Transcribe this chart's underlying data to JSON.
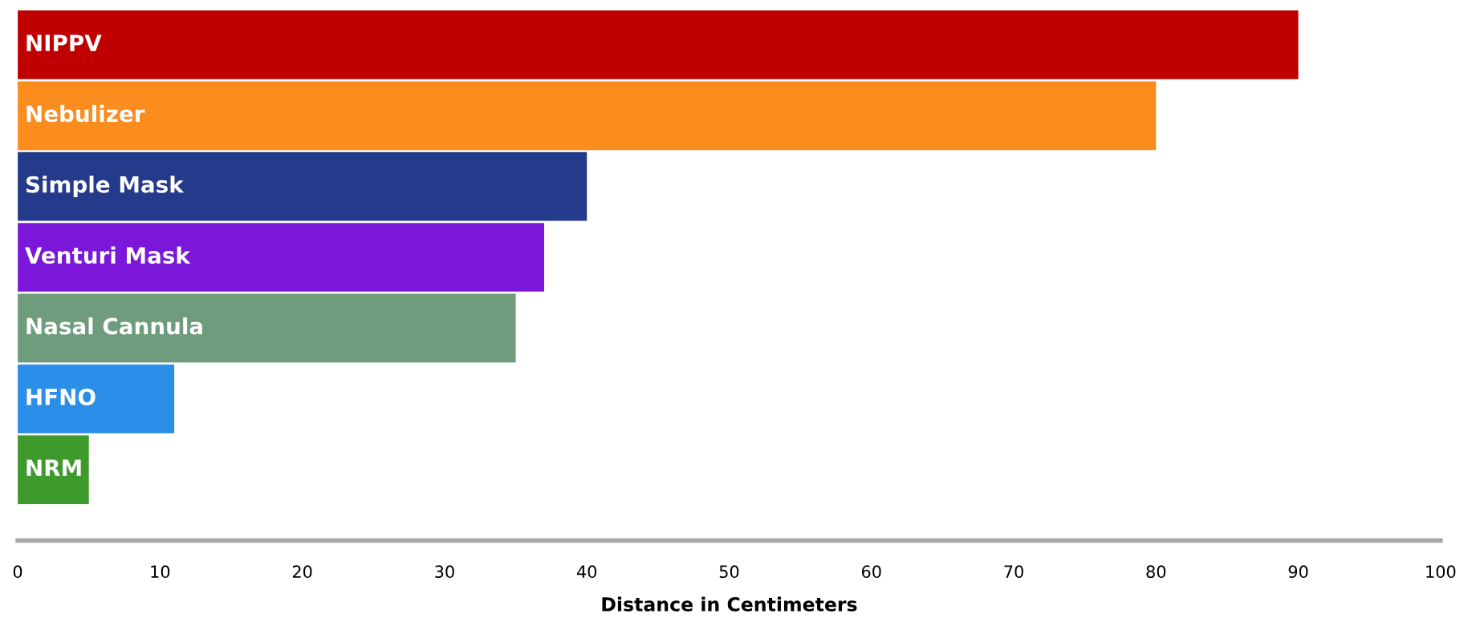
{
  "chart_data": {
    "type": "bar",
    "orientation": "horizontal",
    "xlabel": "Distance in Centimeters",
    "categories": [
      "NIPPV",
      "Nebulizer",
      "Simple Mask",
      "Venturi Mask",
      "Nasal Cannula",
      "HFNO",
      "NRM"
    ],
    "values": [
      90,
      80,
      40,
      37,
      35,
      11,
      5
    ],
    "colors": [
      "#c00000",
      "#fb8c1e",
      "#243a8a",
      "#7a17d8",
      "#6e9c7c",
      "#2b8ee8",
      "#3f9a2e"
    ],
    "xlim": [
      0,
      100
    ],
    "xticks": [
      0,
      10,
      20,
      30,
      40,
      50,
      60,
      70,
      80,
      90,
      100
    ],
    "grid": false,
    "legend": false
  }
}
